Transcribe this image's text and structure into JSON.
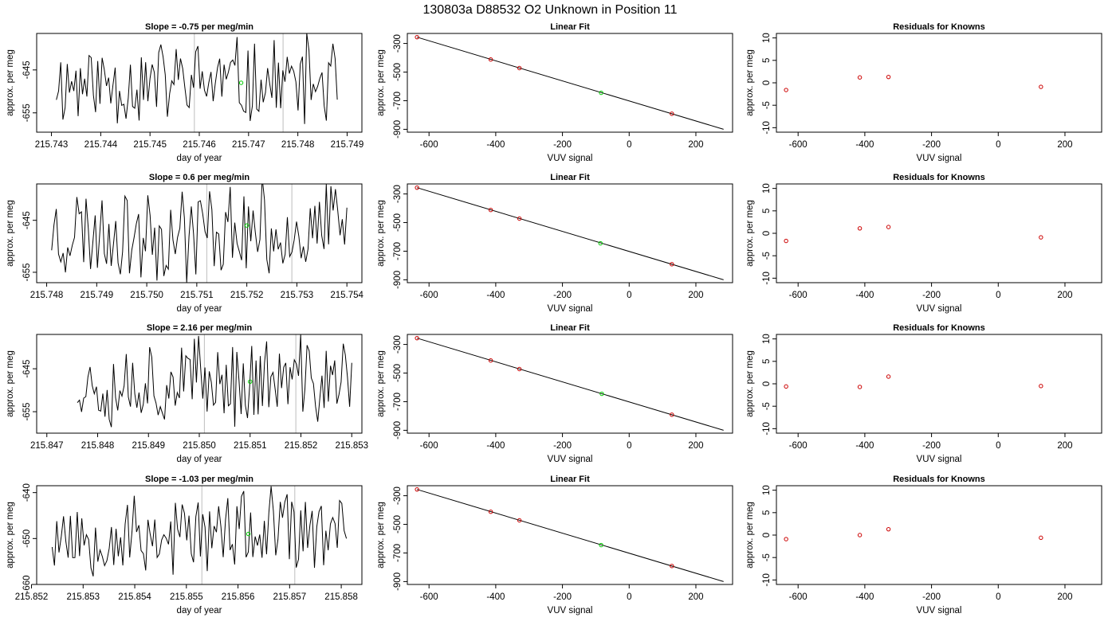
{
  "figure": {
    "title": "130803a      D88532   O2 Unknown in Position  11"
  },
  "colors": {
    "line": "#000000",
    "known_point": "#cc0000",
    "unknown_point": "#00cc00",
    "vline": "#bebebe"
  },
  "chart_data": [
    {
      "type": "line",
      "row": 0,
      "col": 0,
      "title": "Slope =  -0.75  per meg/min",
      "xlabel": "day of year",
      "ylabel": "approx. per meg",
      "xlim": [
        215.7427,
        215.7493
      ],
      "ylim": [
        -659.5,
        -636.5
      ],
      "xticks": [
        "215.743",
        "215.744",
        "215.745",
        "215.746",
        "215.747",
        "215.748",
        "215.749"
      ],
      "xtick_values": [
        215.743,
        215.744,
        215.745,
        215.746,
        215.747,
        215.748,
        215.749
      ],
      "yticks": [
        "-655",
        "-645"
      ],
      "ytick_values": [
        -655,
        -645
      ],
      "x_start": 215.7431,
      "x_end": 215.7488,
      "level": -648,
      "amplitude": 10,
      "seed": 11,
      "vlines": [
        215.7459,
        215.7477
      ],
      "marker": {
        "x": 215.74685,
        "y": -648
      }
    },
    {
      "type": "scatter",
      "row": 0,
      "col": 1,
      "title": "Linear Fit",
      "xlabel": "VUV signal",
      "ylabel": "approx. per meg",
      "xlim": [
        -665,
        310
      ],
      "ylim": [
        -920,
        -230
      ],
      "xticks": [
        "-600",
        "-400",
        "-200",
        "0",
        "200"
      ],
      "xtick_values": [
        -600,
        -400,
        -200,
        0,
        200
      ],
      "yticks": [
        "-900",
        "-700",
        "-500",
        "-300"
      ],
      "ytick_values": [
        -900,
        -700,
        -500,
        -300
      ],
      "fit_line": {
        "x1": -636,
        "y1": -256,
        "x2": 283,
        "y2": -900
      },
      "knowns": [
        {
          "x": -636,
          "y": -256
        },
        {
          "x": -415,
          "y": -412
        },
        {
          "x": -329,
          "y": -472
        },
        {
          "x": 128,
          "y": -791
        }
      ],
      "unknowns": [
        {
          "x": -84,
          "y": -645
        }
      ]
    },
    {
      "type": "scatter",
      "row": 0,
      "col": 2,
      "title": "Residuals for Knowns",
      "xlabel": "VUV signal",
      "ylabel": "approx. per meg",
      "xlim": [
        -665,
        310
      ],
      "ylim": [
        -11,
        11
      ],
      "xticks": [
        "-600",
        "-400",
        "-200",
        "0",
        "200"
      ],
      "xtick_values": [
        -600,
        -400,
        -200,
        0,
        200
      ],
      "yticks": [
        "-10",
        "-5",
        "0",
        "5",
        "10"
      ],
      "ytick_values": [
        -10,
        -5,
        0,
        5,
        10
      ],
      "knowns": [
        {
          "x": -636,
          "y": -1.6
        },
        {
          "x": -415,
          "y": 1.2
        },
        {
          "x": -329,
          "y": 1.3
        },
        {
          "x": 128,
          "y": -0.9
        }
      ]
    },
    {
      "type": "line",
      "row": 1,
      "col": 0,
      "title": "Slope =  0.6  per meg/min",
      "xlabel": "day of year",
      "ylabel": "approx. per meg",
      "xlim": [
        215.7478,
        215.7543
      ],
      "ylim": [
        -657,
        -638
      ],
      "xticks": [
        "215.748",
        "215.749",
        "215.750",
        "215.751",
        "215.752",
        "215.753",
        "215.754"
      ],
      "xtick_values": [
        215.748,
        215.749,
        215.75,
        215.751,
        215.752,
        215.753,
        215.754
      ],
      "yticks": [
        "-655",
        "-645"
      ],
      "ytick_values": [
        -655,
        -645
      ],
      "x_start": 215.7481,
      "x_end": 215.754,
      "level": -647,
      "amplitude": 9,
      "seed": 23,
      "vlines": [
        215.7512,
        215.7529
      ],
      "marker": {
        "x": 215.752,
        "y": -646
      }
    },
    {
      "type": "scatter",
      "row": 1,
      "col": 1,
      "title": "Linear Fit",
      "xlabel": "VUV signal",
      "ylabel": "approx. per meg",
      "xlim": [
        -665,
        310
      ],
      "ylim": [
        -920,
        -230
      ],
      "xticks": [
        "-600",
        "-400",
        "-200",
        "0",
        "200"
      ],
      "xtick_values": [
        -600,
        -400,
        -200,
        0,
        200
      ],
      "yticks": [
        "-900",
        "-700",
        "-500",
        "-300"
      ],
      "ytick_values": [
        -900,
        -700,
        -500,
        -300
      ],
      "fit_line": {
        "x1": -636,
        "y1": -256,
        "x2": 283,
        "y2": -900
      },
      "knowns": [
        {
          "x": -636,
          "y": -256
        },
        {
          "x": -415,
          "y": -412
        },
        {
          "x": -329,
          "y": -472
        },
        {
          "x": 128,
          "y": -791
        }
      ],
      "unknowns": [
        {
          "x": -86,
          "y": -645
        }
      ]
    },
    {
      "type": "scatter",
      "row": 1,
      "col": 2,
      "title": "Residuals for Knowns",
      "xlabel": "VUV signal",
      "ylabel": "approx. per meg",
      "xlim": [
        -665,
        310
      ],
      "ylim": [
        -11,
        11
      ],
      "xticks": [
        "-600",
        "-400",
        "-200",
        "0",
        "200"
      ],
      "xtick_values": [
        -600,
        -400,
        -200,
        0,
        200
      ],
      "yticks": [
        "-10",
        "-5",
        "0",
        "5",
        "10"
      ],
      "ytick_values": [
        -10,
        -5,
        0,
        5,
        10
      ],
      "knowns": [
        {
          "x": -636,
          "y": -1.7
        },
        {
          "x": -415,
          "y": 1.1
        },
        {
          "x": -329,
          "y": 1.4
        },
        {
          "x": 128,
          "y": -0.9
        }
      ]
    },
    {
      "type": "line",
      "row": 2,
      "col": 0,
      "title": "Slope =  2.16  per meg/min",
      "xlabel": "day of year",
      "ylabel": "approx. per meg",
      "xlim": [
        215.8468,
        215.8532
      ],
      "ylim": [
        -660,
        -637
      ],
      "xticks": [
        "215.847",
        "215.848",
        "215.849",
        "215.850",
        "215.851",
        "215.852",
        "215.853"
      ],
      "xtick_values": [
        215.847,
        215.848,
        215.849,
        215.85,
        215.851,
        215.852,
        215.853
      ],
      "yticks": [
        "-655",
        "-645"
      ],
      "ytick_values": [
        -655,
        -645
      ],
      "x_start": 215.8476,
      "x_end": 215.853,
      "level": -648,
      "amplitude": 10,
      "seed": 37,
      "vlines": [
        215.8501,
        215.8519
      ],
      "marker": {
        "x": 215.851,
        "y": -648
      }
    },
    {
      "type": "scatter",
      "row": 2,
      "col": 1,
      "title": "Linear Fit",
      "xlabel": "VUV signal",
      "ylabel": "approx. per meg",
      "xlim": [
        -665,
        310
      ],
      "ylim": [
        -920,
        -230
      ],
      "xticks": [
        "-600",
        "-400",
        "-200",
        "0",
        "200"
      ],
      "xtick_values": [
        -600,
        -400,
        -200,
        0,
        200
      ],
      "yticks": [
        "-900",
        "-700",
        "-500",
        "-300"
      ],
      "ytick_values": [
        -900,
        -700,
        -500,
        -300
      ],
      "fit_line": {
        "x1": -636,
        "y1": -256,
        "x2": 283,
        "y2": -900
      },
      "knowns": [
        {
          "x": -636,
          "y": -256
        },
        {
          "x": -415,
          "y": -412
        },
        {
          "x": -329,
          "y": -472
        },
        {
          "x": 128,
          "y": -791
        }
      ],
      "unknowns": [
        {
          "x": -82,
          "y": -645
        }
      ]
    },
    {
      "type": "scatter",
      "row": 2,
      "col": 2,
      "title": "Residuals for Knowns",
      "xlabel": "VUV signal",
      "ylabel": "approx. per meg",
      "xlim": [
        -665,
        310
      ],
      "ylim": [
        -11,
        11
      ],
      "xticks": [
        "-600",
        "-400",
        "-200",
        "0",
        "200"
      ],
      "xtick_values": [
        -600,
        -400,
        -200,
        0,
        200
      ],
      "yticks": [
        "-10",
        "-5",
        "0",
        "5",
        "10"
      ],
      "ytick_values": [
        -10,
        -5,
        0,
        5,
        10
      ],
      "knowns": [
        {
          "x": -636,
          "y": -0.6
        },
        {
          "x": -415,
          "y": -0.7
        },
        {
          "x": -329,
          "y": 1.6
        },
        {
          "x": 128,
          "y": -0.5
        }
      ]
    },
    {
      "type": "line",
      "row": 3,
      "col": 0,
      "title": "Slope =  -1.03  per meg/min",
      "xlabel": "day of year",
      "ylabel": "approx. per meg",
      "xlim": [
        215.8521,
        215.8584
      ],
      "ylim": [
        -660,
        -638.5
      ],
      "xticks": [
        "215.852",
        "215.853",
        "215.854",
        "215.855",
        "215.856",
        "215.857",
        "215.858"
      ],
      "xtick_values": [
        215.852,
        215.853,
        215.854,
        215.855,
        215.856,
        215.857,
        215.858
      ],
      "yticks": [
        "-660",
        "-650",
        "-640"
      ],
      "ytick_values": [
        -660,
        -650,
        -640
      ],
      "x_start": 215.8524,
      "x_end": 215.8581,
      "level": -649,
      "amplitude": 9,
      "seed": 53,
      "vlines": [
        215.8553,
        215.8571
      ],
      "marker": {
        "x": 215.8562,
        "y": -649
      }
    },
    {
      "type": "scatter",
      "row": 3,
      "col": 1,
      "title": "Linear Fit",
      "xlabel": "VUV signal",
      "ylabel": "approx. per meg",
      "xlim": [
        -665,
        310
      ],
      "ylim": [
        -920,
        -230
      ],
      "xticks": [
        "-600",
        "-400",
        "-200",
        "0",
        "200"
      ],
      "xtick_values": [
        -600,
        -400,
        -200,
        0,
        200
      ],
      "yticks": [
        "-900",
        "-700",
        "-500",
        "-300"
      ],
      "ytick_values": [
        -900,
        -700,
        -500,
        -300
      ],
      "fit_line": {
        "x1": -636,
        "y1": -256,
        "x2": 283,
        "y2": -900
      },
      "knowns": [
        {
          "x": -636,
          "y": -256
        },
        {
          "x": -415,
          "y": -412
        },
        {
          "x": -329,
          "y": -472
        },
        {
          "x": 128,
          "y": -791
        }
      ],
      "unknowns": [
        {
          "x": -84,
          "y": -645
        }
      ]
    },
    {
      "type": "scatter",
      "row": 3,
      "col": 2,
      "title": "Residuals for Knowns",
      "xlabel": "VUV signal",
      "ylabel": "approx. per meg",
      "xlim": [
        -665,
        310
      ],
      "ylim": [
        -11,
        11
      ],
      "xticks": [
        "-600",
        "-400",
        "-200",
        "0",
        "200"
      ],
      "xtick_values": [
        -600,
        -400,
        -200,
        0,
        200
      ],
      "yticks": [
        "-10",
        "-5",
        "0",
        "5",
        "10"
      ],
      "ytick_values": [
        -10,
        -5,
        0,
        5,
        10
      ],
      "knowns": [
        {
          "x": -636,
          "y": -0.9
        },
        {
          "x": -415,
          "y": 0.0
        },
        {
          "x": -329,
          "y": 1.3
        },
        {
          "x": 128,
          "y": -0.6
        }
      ]
    }
  ]
}
